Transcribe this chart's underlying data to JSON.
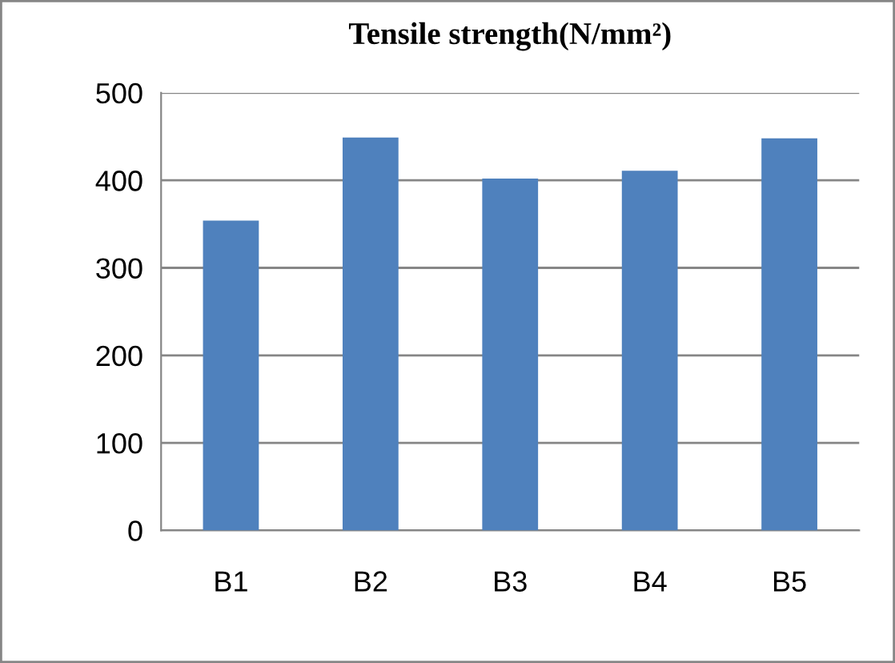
{
  "chart_data": {
    "type": "bar",
    "title": "Tensile strength(N/mm²)",
    "categories": [
      "B1",
      "B2",
      "B3",
      "B4",
      "B5"
    ],
    "values": [
      354,
      449,
      402,
      411,
      448
    ],
    "color": "#4f81bd",
    "ylim": [
      0,
      500
    ],
    "yticks": [
      0,
      100,
      200,
      300,
      400,
      500
    ],
    "grid": "y",
    "legend": false
  }
}
